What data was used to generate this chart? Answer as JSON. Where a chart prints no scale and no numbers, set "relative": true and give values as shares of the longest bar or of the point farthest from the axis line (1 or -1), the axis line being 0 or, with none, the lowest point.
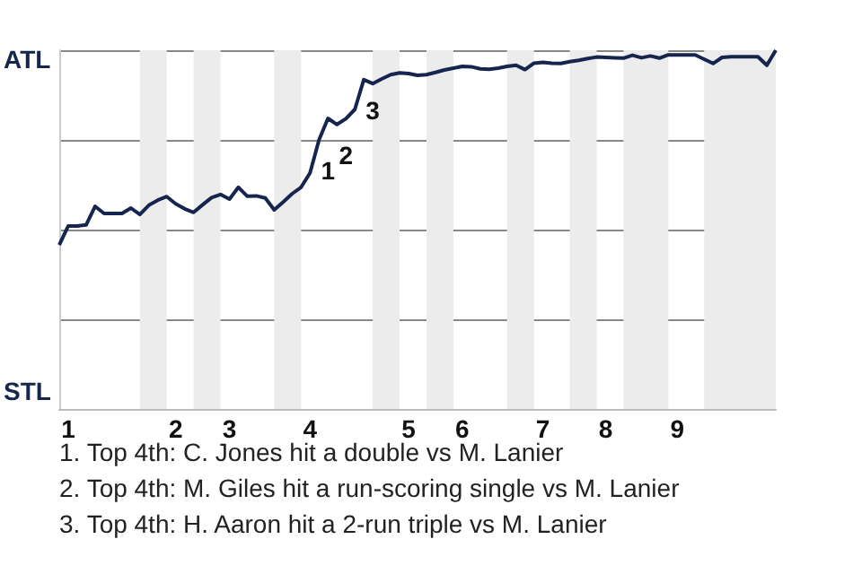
{
  "chart_data": {
    "type": "line",
    "categories": [
      null,
      "1",
      null,
      null,
      null,
      null,
      null,
      null,
      null,
      null,
      null,
      null,
      null,
      "2",
      null,
      null,
      null,
      null,
      null,
      "3",
      null,
      null,
      null,
      null,
      null,
      null,
      null,
      null,
      "4",
      null,
      null,
      null,
      null,
      null,
      null,
      null,
      null,
      null,
      null,
      "5",
      null,
      null,
      null,
      null,
      null,
      "6",
      null,
      null,
      null,
      null,
      null,
      null,
      null,
      null,
      "7",
      null,
      null,
      null,
      null,
      null,
      null,
      "8",
      null,
      null,
      null,
      null,
      null,
      null,
      null,
      "9",
      null,
      null,
      null,
      null,
      null,
      null,
      null,
      null,
      null,
      null,
      null
    ],
    "series": [
      {
        "color": "#15254d",
        "values": [
          0.457,
          0.51,
          0.51,
          0.513,
          0.565,
          0.545,
          0.545,
          0.545,
          0.56,
          0.542,
          0.568,
          0.582,
          0.592,
          0.572,
          0.558,
          0.548,
          0.569,
          0.589,
          0.598,
          0.585,
          0.618,
          0.593,
          0.594,
          0.588,
          0.555,
          0.577,
          0.6,
          0.618,
          0.658,
          0.75,
          0.81,
          0.793,
          0.809,
          0.835,
          0.918,
          0.907,
          0.92,
          0.932,
          0.937,
          0.935,
          0.93,
          0.932,
          0.938,
          0.945,
          0.95,
          0.955,
          0.954,
          0.948,
          0.947,
          0.95,
          0.955,
          0.958,
          0.946,
          0.964,
          0.966,
          0.964,
          0.963,
          0.968,
          0.972,
          0.977,
          0.981,
          0.98,
          0.979,
          0.978,
          0.986,
          0.979,
          0.984,
          0.978,
          0.987,
          0.987,
          0.987,
          0.987,
          0.975,
          0.963,
          0.98,
          0.982,
          0.982,
          0.982,
          0.982,
          0.958,
          1
        ]
      }
    ],
    "relative": true,
    "grid": "y",
    "marker": "none",
    "line_style": "solid",
    "annotations": [
      {
        "text": "1",
        "y": 0.75
      },
      {
        "text": "2",
        "y": 0.793
      },
      {
        "text": "3",
        "y": 0.918
      },
      "ATL",
      "STL",
      "1. Top 4th: C. Jones hit a double vs M. Lanier",
      "2. Top 4th: M. Giles hit a run-scoring single vs M. Lanier",
      "3. Top 4th: H. Aaron hit a 2-run triple vs M. Lanier"
    ]
  }
}
